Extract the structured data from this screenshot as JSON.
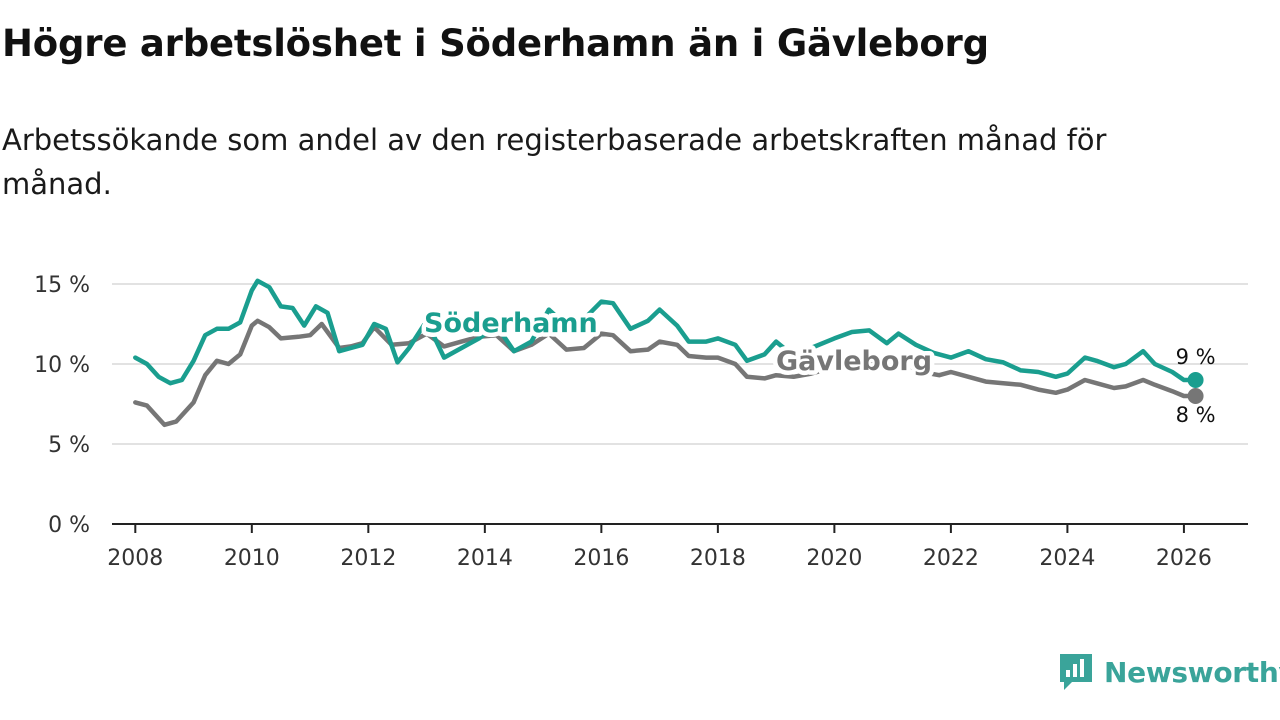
{
  "title": "Högre arbetslöshet i Söderhamn än i Gävleborg",
  "subtitle": "Arbetssökande som andel av den registerbaserade arbetskraften månad för månad.",
  "brand": {
    "name": "Newsworthy",
    "color": "#3aa49a"
  },
  "chart_data": {
    "type": "line",
    "title": "Högre arbetslöshet i Söderhamn än i Gävleborg",
    "xlabel": "",
    "ylabel": "",
    "xlim": [
      2007.6,
      2027.1
    ],
    "ylim": [
      0,
      15
    ],
    "y_ticks": [
      0,
      5,
      10,
      15
    ],
    "y_tick_labels": [
      "0 %",
      "5 %",
      "10 %",
      "15 %"
    ],
    "x_ticks": [
      2008,
      2010,
      2012,
      2014,
      2016,
      2018,
      2020,
      2022,
      2024,
      2026
    ],
    "x_tick_labels": [
      "2008",
      "2010",
      "2012",
      "2014",
      "2016",
      "2018",
      "2020",
      "2022",
      "2024",
      "2026"
    ],
    "grid": true,
    "series": [
      {
        "name": "Söderhamn",
        "color": "#1a9e8f",
        "end_label": "9 %",
        "points": [
          [
            2008.0,
            10.4
          ],
          [
            2008.2,
            10.0
          ],
          [
            2008.4,
            9.2
          ],
          [
            2008.6,
            8.8
          ],
          [
            2008.8,
            9.0
          ],
          [
            2009.0,
            10.2
          ],
          [
            2009.2,
            11.8
          ],
          [
            2009.4,
            12.2
          ],
          [
            2009.6,
            12.2
          ],
          [
            2009.8,
            12.6
          ],
          [
            2010.0,
            14.6
          ],
          [
            2010.1,
            15.2
          ],
          [
            2010.3,
            14.8
          ],
          [
            2010.5,
            13.6
          ],
          [
            2010.7,
            13.5
          ],
          [
            2010.9,
            12.4
          ],
          [
            2011.1,
            13.6
          ],
          [
            2011.3,
            13.2
          ],
          [
            2011.5,
            10.8
          ],
          [
            2011.7,
            11.0
          ],
          [
            2011.9,
            11.2
          ],
          [
            2012.1,
            12.5
          ],
          [
            2012.3,
            12.2
          ],
          [
            2012.5,
            10.1
          ],
          [
            2012.7,
            11.0
          ],
          [
            2013.0,
            12.7
          ],
          [
            2013.3,
            10.4
          ],
          [
            2013.6,
            11.0
          ],
          [
            2013.9,
            11.6
          ],
          [
            2014.2,
            12.4
          ],
          [
            2014.5,
            10.8
          ],
          [
            2014.8,
            11.4
          ],
          [
            2015.1,
            13.4
          ],
          [
            2015.4,
            12.4
          ],
          [
            2015.7,
            12.8
          ],
          [
            2016.0,
            13.9
          ],
          [
            2016.2,
            13.8
          ],
          [
            2016.5,
            12.2
          ],
          [
            2016.8,
            12.7
          ],
          [
            2017.0,
            13.4
          ],
          [
            2017.3,
            12.4
          ],
          [
            2017.5,
            11.4
          ],
          [
            2017.8,
            11.4
          ],
          [
            2018.0,
            11.6
          ],
          [
            2018.3,
            11.2
          ],
          [
            2018.5,
            10.2
          ],
          [
            2018.8,
            10.6
          ],
          [
            2019.0,
            11.4
          ],
          [
            2019.3,
            10.5
          ],
          [
            2019.6,
            11.0
          ],
          [
            2020.0,
            11.6
          ],
          [
            2020.3,
            12.0
          ],
          [
            2020.6,
            12.1
          ],
          [
            2020.9,
            11.3
          ],
          [
            2021.1,
            11.9
          ],
          [
            2021.4,
            11.2
          ],
          [
            2021.7,
            10.7
          ],
          [
            2022.0,
            10.4
          ],
          [
            2022.3,
            10.8
          ],
          [
            2022.6,
            10.3
          ],
          [
            2022.9,
            10.1
          ],
          [
            2023.2,
            9.6
          ],
          [
            2023.5,
            9.5
          ],
          [
            2023.8,
            9.2
          ],
          [
            2024.0,
            9.4
          ],
          [
            2024.3,
            10.4
          ],
          [
            2024.5,
            10.2
          ],
          [
            2024.8,
            9.8
          ],
          [
            2025.0,
            10.0
          ],
          [
            2025.3,
            10.8
          ],
          [
            2025.5,
            10.0
          ],
          [
            2025.8,
            9.5
          ],
          [
            2026.0,
            9.0
          ],
          [
            2026.2,
            9.0
          ]
        ]
      },
      {
        "name": "Gävleborg",
        "color": "#767676",
        "end_label": "8 %",
        "points": [
          [
            2008.0,
            7.6
          ],
          [
            2008.2,
            7.4
          ],
          [
            2008.4,
            6.6
          ],
          [
            2008.5,
            6.2
          ],
          [
            2008.7,
            6.4
          ],
          [
            2009.0,
            7.6
          ],
          [
            2009.2,
            9.3
          ],
          [
            2009.4,
            10.2
          ],
          [
            2009.6,
            10.0
          ],
          [
            2009.8,
            10.6
          ],
          [
            2010.0,
            12.4
          ],
          [
            2010.1,
            12.7
          ],
          [
            2010.3,
            12.3
          ],
          [
            2010.5,
            11.6
          ],
          [
            2010.8,
            11.7
          ],
          [
            2011.0,
            11.8
          ],
          [
            2011.2,
            12.5
          ],
          [
            2011.5,
            11.0
          ],
          [
            2011.7,
            11.1
          ],
          [
            2011.9,
            11.3
          ],
          [
            2012.1,
            12.3
          ],
          [
            2012.4,
            11.2
          ],
          [
            2012.7,
            11.3
          ],
          [
            2013.0,
            11.9
          ],
          [
            2013.3,
            11.1
          ],
          [
            2013.6,
            11.4
          ],
          [
            2013.9,
            11.7
          ],
          [
            2014.2,
            11.8
          ],
          [
            2014.5,
            10.8
          ],
          [
            2014.8,
            11.2
          ],
          [
            2015.1,
            11.9
          ],
          [
            2015.4,
            10.9
          ],
          [
            2015.7,
            11.0
          ],
          [
            2016.0,
            11.9
          ],
          [
            2016.2,
            11.8
          ],
          [
            2016.5,
            10.8
          ],
          [
            2016.8,
            10.9
          ],
          [
            2017.0,
            11.4
          ],
          [
            2017.3,
            11.2
          ],
          [
            2017.5,
            10.5
          ],
          [
            2017.8,
            10.4
          ],
          [
            2018.0,
            10.4
          ],
          [
            2018.3,
            10.0
          ],
          [
            2018.5,
            9.2
          ],
          [
            2018.8,
            9.1
          ],
          [
            2019.0,
            9.3
          ],
          [
            2019.3,
            9.2
          ],
          [
            2019.6,
            9.4
          ],
          [
            2020.0,
            9.8
          ],
          [
            2020.3,
            10.2
          ],
          [
            2020.6,
            10.2
          ],
          [
            2020.9,
            9.9
          ],
          [
            2021.2,
            10.0
          ],
          [
            2021.5,
            9.5
          ],
          [
            2021.8,
            9.3
          ],
          [
            2022.0,
            9.5
          ],
          [
            2022.3,
            9.2
          ],
          [
            2022.6,
            8.9
          ],
          [
            2022.9,
            8.8
          ],
          [
            2023.2,
            8.7
          ],
          [
            2023.5,
            8.4
          ],
          [
            2023.8,
            8.2
          ],
          [
            2024.0,
            8.4
          ],
          [
            2024.3,
            9.0
          ],
          [
            2024.5,
            8.8
          ],
          [
            2024.8,
            8.5
          ],
          [
            2025.0,
            8.6
          ],
          [
            2025.3,
            9.0
          ],
          [
            2025.5,
            8.7
          ],
          [
            2025.8,
            8.3
          ],
          [
            2026.0,
            8.0
          ],
          [
            2026.2,
            8.0
          ]
        ]
      }
    ]
  }
}
